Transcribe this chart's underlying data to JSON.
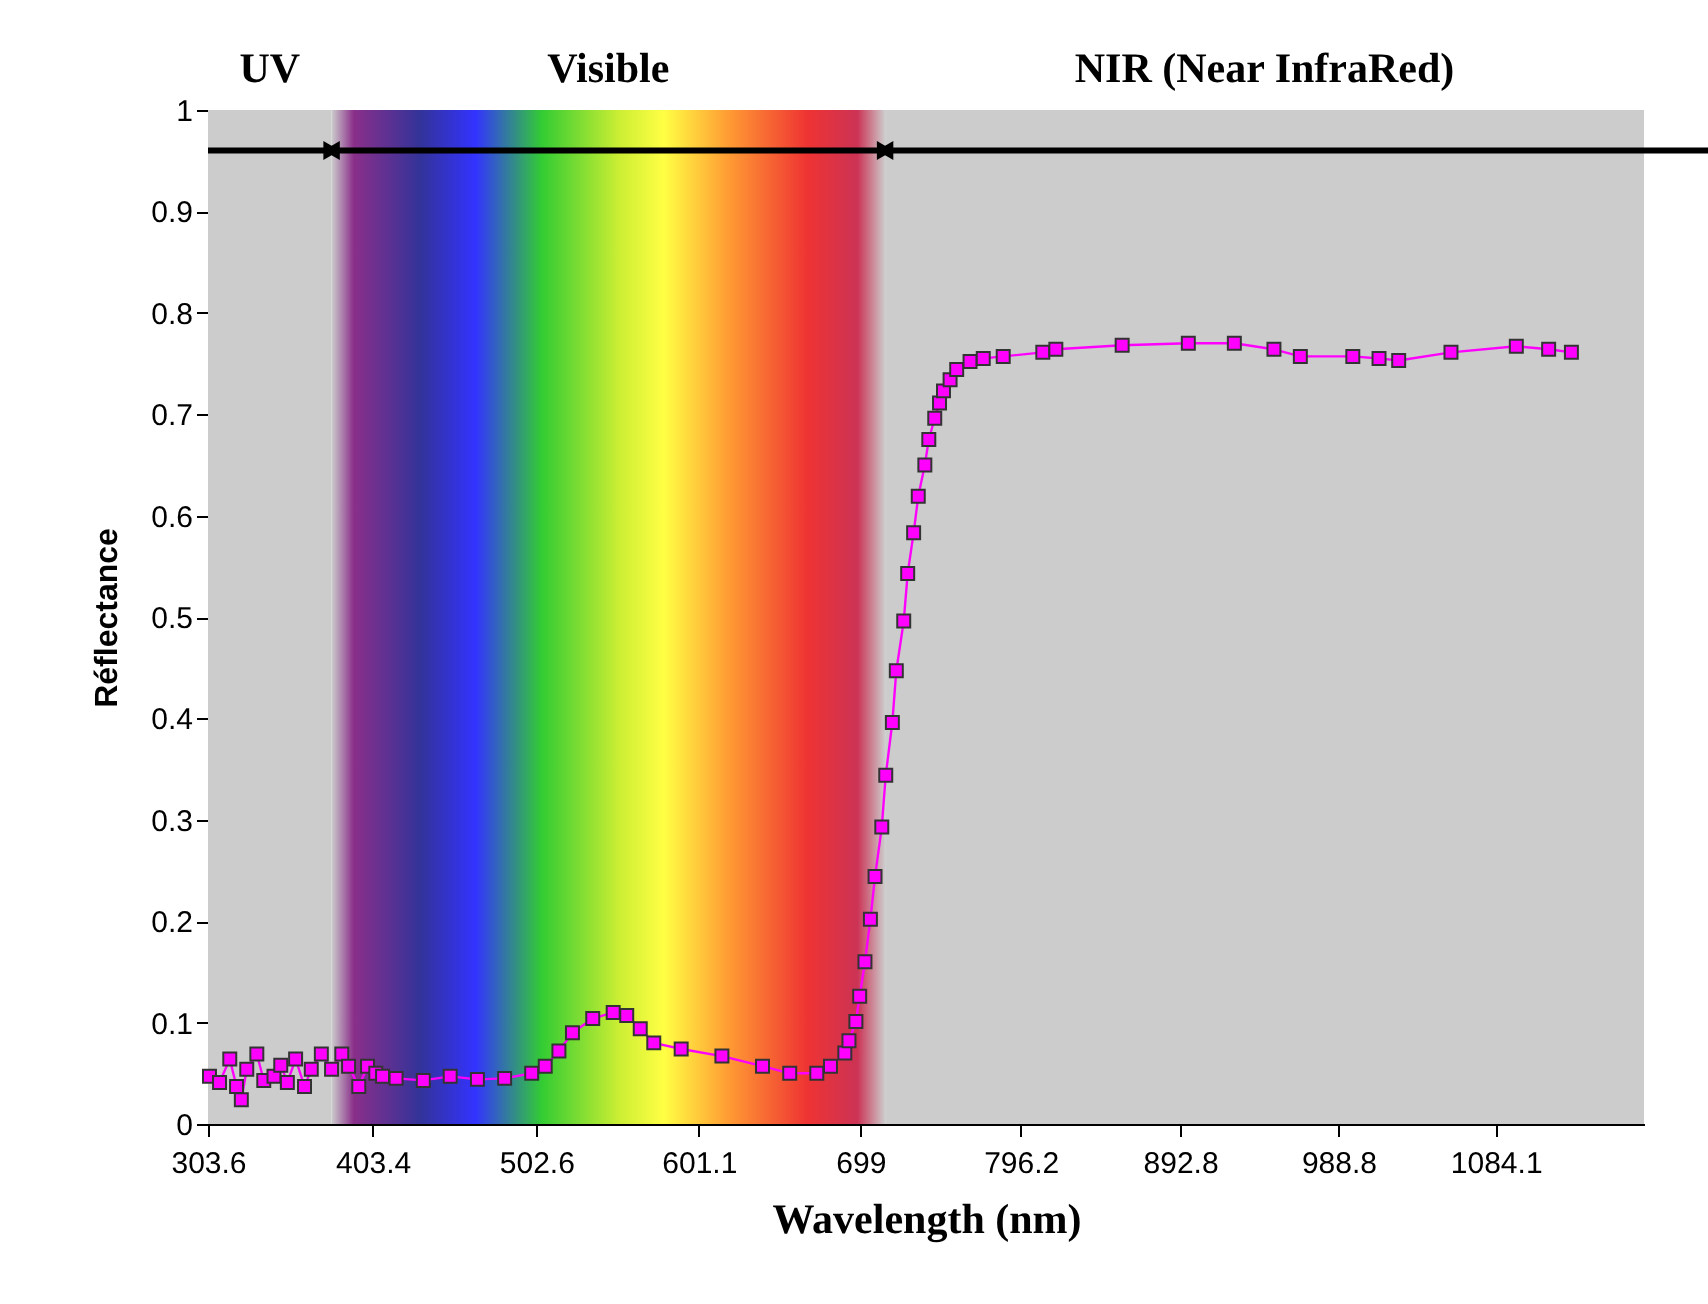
{
  "chart_data": {
    "type": "line",
    "xlabel": "Wavelength (nm)",
    "ylabel": "Réflectance",
    "xlim": [
      303.6,
      1174
    ],
    "xticks": [
      303.6,
      403.4,
      502.6,
      601.1,
      699,
      796.2,
      892.8,
      988.8,
      1084.1
    ],
    "ylim": [
      0,
      1
    ],
    "yticks": [
      0,
      0.1,
      0.2,
      0.3,
      0.4,
      0.5,
      0.6,
      0.7,
      0.8,
      0.9,
      1
    ],
    "grid": false,
    "marker": "square",
    "line_style": "solid",
    "bands": [
      {
        "axis": "x",
        "from": 303.6,
        "to": 378.5,
        "label": "UV",
        "color": "#cccccc"
      },
      {
        "axis": "x",
        "from": 378.5,
        "to": 714,
        "label": "Visible"
      },
      {
        "axis": "x",
        "from": 714,
        "to": 1174,
        "label": "NIR (Near InfraRed)",
        "color": "#cccccc"
      }
    ],
    "series": [
      {
        "color": "#ff00ff",
        "x": [
          304.5,
          310.6,
          316.8,
          320.9,
          323.8,
          327.1,
          333.2,
          337.4,
          343.6,
          347.7,
          351.7,
          356.7,
          362.1,
          366.2,
          372.3,
          378.5,
          384.7,
          388.8,
          395.0,
          400.3,
          405.3,
          409.4,
          417.6,
          434.1,
          450.4,
          466.9,
          483.4,
          499.8,
          508.0,
          516.3,
          524.5,
          536.8,
          549.2,
          557.4,
          565.6,
          573.8,
          590.4,
          615.1,
          639.7,
          656.2,
          672.6,
          680.9,
          689.6,
          692.1,
          696.3,
          698.6,
          701.8,
          705.1,
          707.9,
          712.0,
          714.4,
          718.4,
          720.8,
          725.3,
          727.7,
          731.3,
          734.1,
          738.1,
          740.5,
          744.1,
          747.0,
          749.4,
          753.4,
          757.4,
          765.5,
          773.5,
          785.6,
          809.6,
          817.5,
          857.7,
          897.8,
          925.7,
          949.7,
          965.7,
          997.5,
          1013.4,
          1025.3,
          1057.0,
          1096.6,
          1116.2,
          1130.0
        ],
        "values": [
          0.047,
          0.041,
          0.064,
          0.037,
          0.024,
          0.054,
          0.069,
          0.043,
          0.047,
          0.058,
          0.041,
          0.064,
          0.037,
          0.054,
          0.069,
          0.054,
          0.069,
          0.057,
          0.037,
          0.057,
          0.05,
          0.047,
          0.045,
          0.043,
          0.047,
          0.044,
          0.045,
          0.05,
          0.057,
          0.072,
          0.09,
          0.104,
          0.11,
          0.107,
          0.094,
          0.08,
          0.074,
          0.067,
          0.057,
          0.05,
          0.05,
          0.057,
          0.07,
          0.082,
          0.101,
          0.126,
          0.16,
          0.202,
          0.244,
          0.293,
          0.344,
          0.396,
          0.447,
          0.496,
          0.543,
          0.583,
          0.619,
          0.65,
          0.675,
          0.696,
          0.711,
          0.723,
          0.734,
          0.744,
          0.752,
          0.755,
          0.757,
          0.761,
          0.764,
          0.768,
          0.77,
          0.77,
          0.764,
          0.757,
          0.757,
          0.755,
          0.753,
          0.761,
          0.767,
          0.764,
          0.761
        ]
      }
    ]
  }
}
